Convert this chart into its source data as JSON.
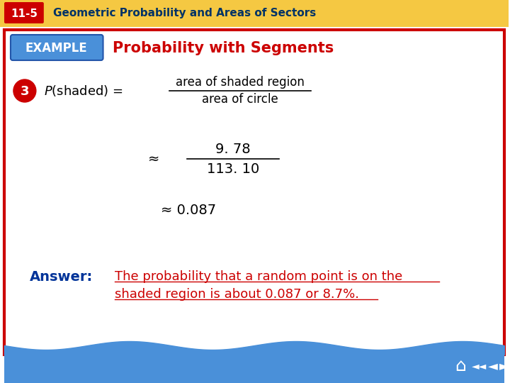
{
  "title_bar_color": "#f5c842",
  "title_bar_text": "11-5",
  "title_bar_subtitle": "Geometric Probability and Areas of Sectors",
  "title_bar_text_color": "#ffffff",
  "title_bar_subtitle_color": "#003366",
  "example_bg_color": "#4a90d9",
  "example_text": "EXAMPLE",
  "example_text_color": "#ffffff",
  "section_title": "Probability with Segments",
  "section_title_color": "#cc0000",
  "step_number": "3",
  "step_circle_color": "#cc0000",
  "step_text_color": "#ffffff",
  "main_bg": "#ffffff",
  "border_color": "#cc0000",
  "fraction1_num": "area of shaded region",
  "fraction1_den": "area of circle",
  "fraction2_num": "9. 78",
  "fraction2_den": "113. 10",
  "approx_value": "≈ 0.087",
  "answer_label": "Answer:",
  "answer_label_color": "#003399",
  "answer_text_line1": "The probability that a random point is on the",
  "answer_text_line2": "shaded region is about 0.087 or 8.7%.",
  "answer_text_color": "#cc0000",
  "approx_symbol": "≈",
  "body_text_color": "#000000",
  "footer_bg": "#4a90d9",
  "wave_color": "#4a90d9"
}
